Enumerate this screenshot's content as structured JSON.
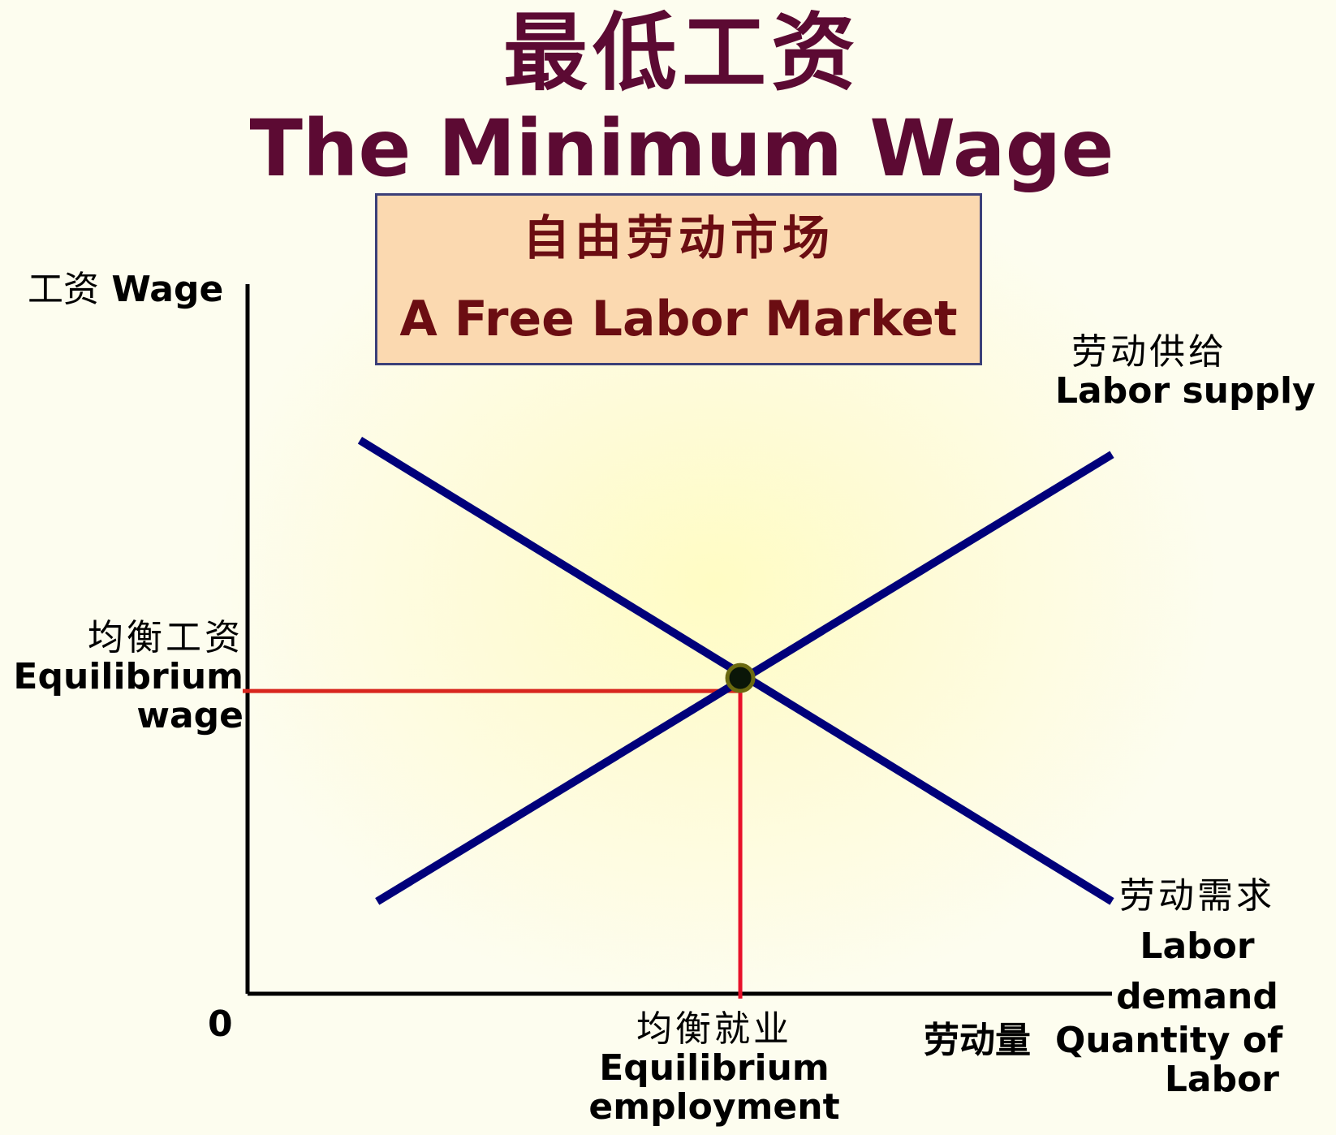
{
  "title": {
    "cn": "最低工资",
    "en": "The Minimum Wage"
  },
  "subtitle": {
    "cn": "自由劳动市场",
    "en": "A Free Labor Market"
  },
  "colors": {
    "curves": "#00007a",
    "equilibrium_lines": "#e01e28",
    "axis": "#000000",
    "title": "#5c0a33",
    "box_fill": "#fbd9b0"
  },
  "chart_data": {
    "type": "line",
    "title": "The Minimum Wage",
    "xlabel": "劳动量 Quantity of Labor",
    "ylabel": "工资 Wage",
    "xlim": [
      0,
      10
    ],
    "ylim": [
      0,
      10
    ],
    "origin_label": "0",
    "grid": false,
    "series": [
      {
        "name": "劳动供给 Labor supply",
        "x": [
          1.5,
          10
        ],
        "y": [
          1.3,
          7.6
        ]
      },
      {
        "name": "劳动需求 Labor demand",
        "x": [
          1.3,
          10
        ],
        "y": [
          7.8,
          1.3
        ]
      }
    ],
    "equilibrium": {
      "x": 5.7,
      "y": 4.45,
      "wage_label": {
        "cn": "均衡工资",
        "en": [
          "Equilibrium",
          "wage"
        ]
      },
      "employment_label": {
        "cn": "均衡就业",
        "en": [
          "Equilibrium",
          "employment"
        ]
      }
    },
    "labels": {
      "supply": {
        "cn": "劳动供给",
        "en": "Labor supply"
      },
      "demand": {
        "cn": "劳动需求",
        "en": [
          "Labor",
          "demand"
        ]
      },
      "y_axis": {
        "cn": "工资",
        "en": "Wage"
      },
      "x_axis": {
        "cn": "劳动量",
        "en": [
          "Quantity of",
          "Labor"
        ]
      }
    }
  }
}
